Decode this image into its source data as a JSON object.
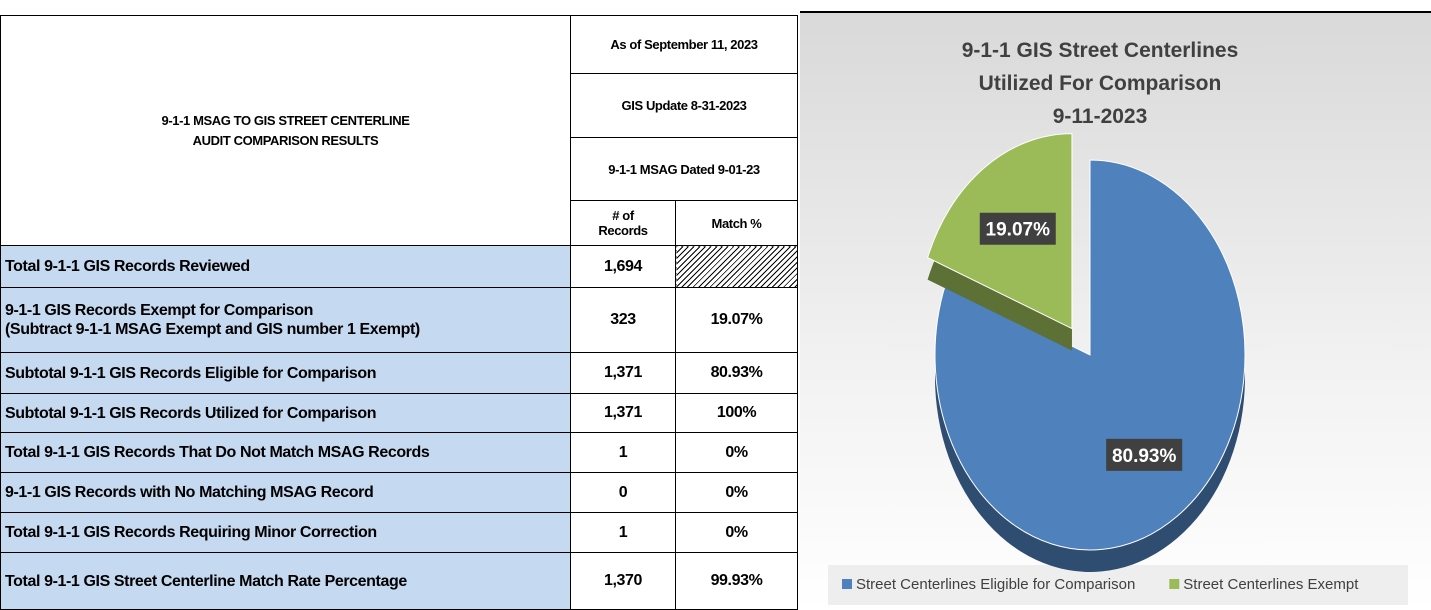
{
  "table": {
    "title_lines": [
      "9-1-1 MSAG TO GIS STREET CENTERLINE",
      "AUDIT COMPARISON RESULTS"
    ],
    "header": {
      "as_of": "As of September 11, 2023",
      "gis_update": "GIS Update 8-31-2023",
      "msag": "9-1-1 MSAG Dated 9-01-23",
      "records": [
        "# of",
        "Records"
      ],
      "match": "Match %"
    },
    "rows": [
      {
        "label": [
          "Total 9-1-1 GIS Records Reviewed"
        ],
        "records": "1,694"
      },
      {
        "label": [
          "9-1-1 GIS Records Exempt for Comparison",
          "(Subtract 9-1-1 MSAG Exempt and GIS number 1 Exempt)"
        ],
        "records": "323",
        "match": "19.07%"
      },
      {
        "label": [
          "Subtotal 9-1-1 GIS Records Eligible for Comparison"
        ],
        "records": "1,371",
        "match": "80.93%"
      },
      {
        "label": [
          "Subtotal 9-1-1 GIS Records Utilized for Comparison"
        ],
        "records": "1,371",
        "match": "100%"
      },
      {
        "label": [
          "Total 9-1-1 GIS Records That Do Not Match MSAG Records"
        ],
        "records": "1",
        "match": "0%"
      },
      {
        "label": [
          "9-1-1 GIS Records with No Matching MSAG Record"
        ],
        "records": "0",
        "match": "0%"
      },
      {
        "label": [
          "Total 9-1-1 GIS Records Requiring Minor Correction"
        ],
        "records": "1",
        "match": "0%"
      },
      {
        "label": [
          "Total 9-1-1 GIS Street Centerline Match Rate Percentage"
        ],
        "records": "1,370",
        "match": "99.93%"
      }
    ]
  },
  "chart_data": {
    "type": "pie",
    "title": [
      "9-1-1 GIS Street Centerlines",
      "Utilized For Comparison",
      "9-11-2023"
    ],
    "categories": [
      "Street Centerlines Eligible for Comparison",
      "Street Centerlines Exempt"
    ],
    "values": [
      80.93,
      19.07
    ],
    "value_labels": [
      "80.93%",
      "19.07%"
    ],
    "colors": [
      "#4f81bd",
      "#9bbb59"
    ],
    "legend": "bottom"
  }
}
